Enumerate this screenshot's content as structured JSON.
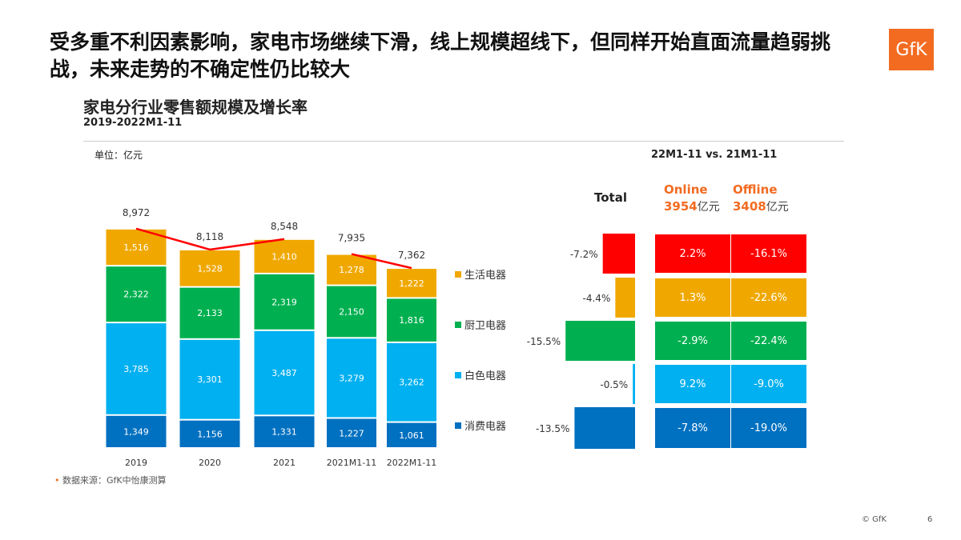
{
  "headline": "受多重不利因素影响，家电市场继续下滑，线上规模超线下，但同样开始直面流量趋弱挑战，未来走势的不确定性仍比较大",
  "logo": "GfK",
  "source_prefix": "•",
  "source": "数据来源：GfK中怡康测算",
  "copyright": "© GfK",
  "page_number": "6",
  "colors": {
    "生活电器": "#f0a800",
    "厨卫电器": "#00b050",
    "白色电器": "#00b0f0",
    "消费电器": "#0070c0",
    "line": "#ff0000",
    "total_top": "#ff0000",
    "orange": "#f26b21"
  },
  "chart_data": [
    {
      "type": "bar",
      "stacked": true,
      "title": "家电分行业零售额规模及增长率",
      "subtitle": "2019-2022M1-11",
      "unit_label": "单位：亿元",
      "categories": [
        "2019",
        "2020",
        "2021",
        "2021M1-11",
        "2022M1-11"
      ],
      "series": [
        {
          "name": "消费电器",
          "values": [
            1349,
            1156,
            1331,
            1227,
            1061
          ]
        },
        {
          "name": "白色电器",
          "values": [
            3785,
            3301,
            3487,
            3279,
            3262
          ]
        },
        {
          "name": "厨卫电器",
          "values": [
            2322,
            2133,
            2319,
            2150,
            1816
          ]
        },
        {
          "name": "生活电器",
          "values": [
            1516,
            1528,
            1410,
            1278,
            1222
          ]
        }
      ],
      "value_labels": {
        "消费电器": [
          "1,349",
          "1,156",
          "1,331",
          "1,227",
          "1,061"
        ],
        "白色电器": [
          "3,785",
          "3,301",
          "3,487",
          "3,279",
          "3,262"
        ],
        "厨卫电器": [
          "2,322",
          "2,133",
          "2,319",
          "2,150",
          "1,816"
        ],
        "生活电器": [
          "1,516",
          "1,528",
          "1,410",
          "1,278",
          "1,222"
        ]
      },
      "totals": [
        8972,
        8118,
        8548,
        7935,
        7362
      ],
      "total_labels": [
        "8,972",
        "8,118",
        "8,548",
        "7,935",
        "7,362"
      ],
      "legend": [
        "生活电器",
        "厨卫电器",
        "白色电器",
        "消费电器"
      ],
      "legend_placement": "right"
    },
    {
      "type": "bar",
      "orientation": "horizontal",
      "title": "Total",
      "comparison": "22M1-11 vs. 21M1-11",
      "categories": [
        "生活电器(top)",
        "生活电器",
        "厨卫电器",
        "白色电器",
        "消费电器"
      ],
      "rows": [
        {
          "value": -7.2,
          "label": "-7.2%",
          "color": "#ff0000"
        },
        {
          "value": -4.4,
          "label": "-4.4%",
          "color": "#f0a800"
        },
        {
          "value": -15.5,
          "label": "-15.5%",
          "color": "#00b050"
        },
        {
          "value": -0.5,
          "label": "-0.5%",
          "color": "#00b0f0"
        },
        {
          "value": -13.5,
          "label": "-13.5%",
          "color": "#0070c0"
        }
      ]
    },
    {
      "type": "table",
      "columns": [
        {
          "name": "Online",
          "amount": "3954",
          "unit": "亿元"
        },
        {
          "name": "Offline",
          "amount": "3408",
          "unit": "亿元"
        }
      ],
      "rows": [
        {
          "color": "#ff0000",
          "online": "2.2%",
          "offline": "-16.1%"
        },
        {
          "color": "#f0a800",
          "online": "1.3%",
          "offline": "-22.6%"
        },
        {
          "color": "#00b050",
          "online": "-2.9%",
          "offline": "-22.4%"
        },
        {
          "color": "#00b0f0",
          "online": "9.2%",
          "offline": "-9.0%"
        },
        {
          "color": "#0070c0",
          "online": "-7.8%",
          "offline": "-19.0%"
        }
      ]
    }
  ]
}
